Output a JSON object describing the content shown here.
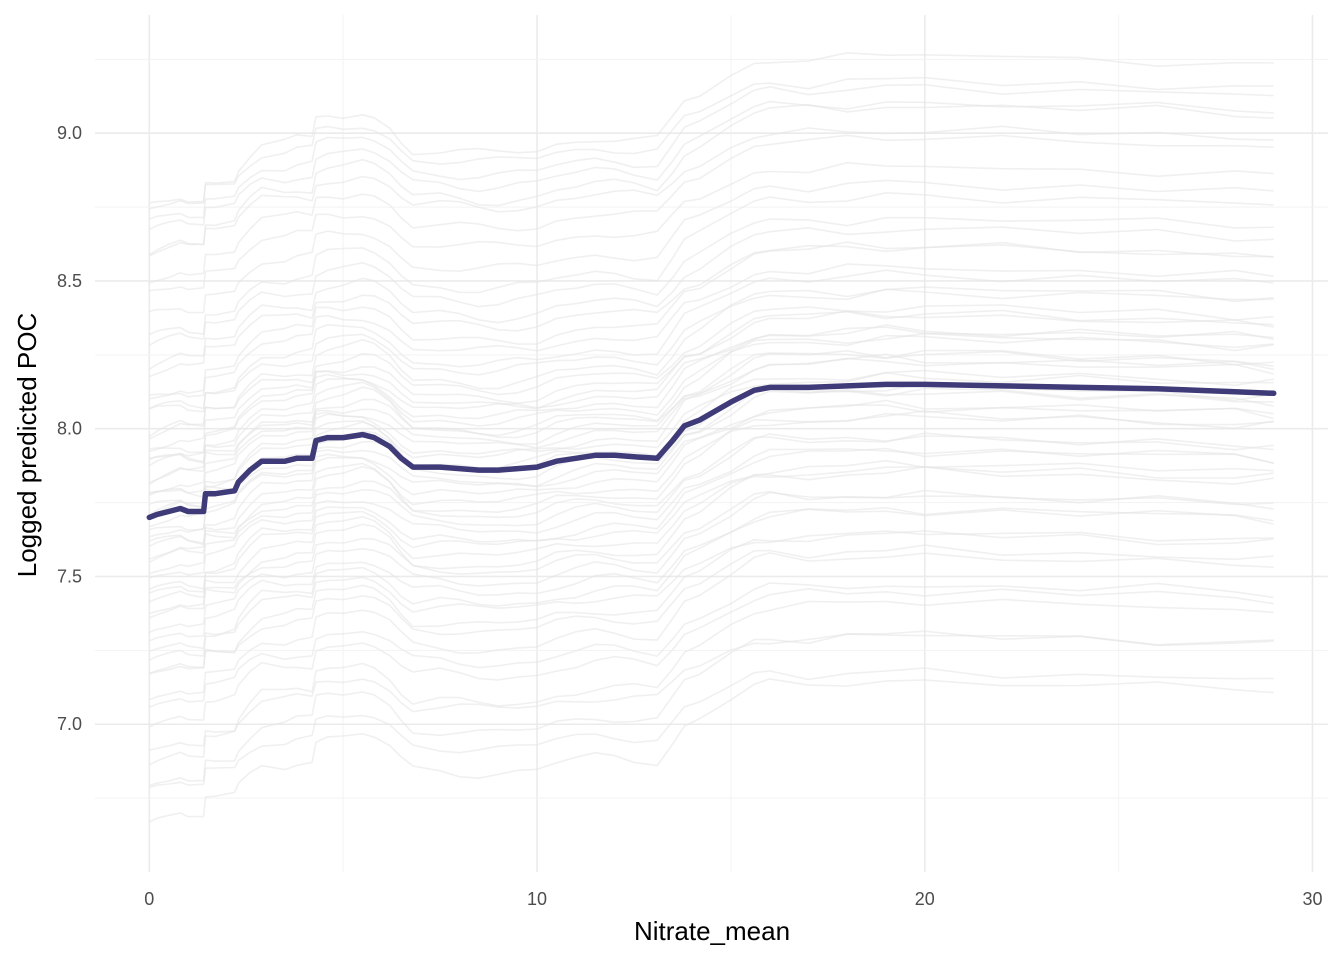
{
  "chart_data": {
    "type": "line",
    "chart_kind": "individual conditional expectation (ICE) with average curve",
    "xlabel": "Nitrate_mean",
    "ylabel": "Logged predicted POC",
    "xlim": [
      -1.4,
      30.4
    ],
    "ylim": [
      6.5,
      9.4
    ],
    "x_ticks": [
      0,
      10,
      20,
      30
    ],
    "y_ticks": [
      7.0,
      7.5,
      8.0,
      8.5,
      9.0
    ],
    "x_tick_labels": [
      "0",
      "10",
      "20",
      "30"
    ],
    "y_tick_labels": [
      "7.0",
      "7.5",
      "8.0",
      "8.5",
      "9.0"
    ],
    "grid": true,
    "legend": "none",
    "colors": {
      "average_line": "#3f3a78",
      "ice_lines": "#e3e3e3",
      "major_grid": "#ebebeb",
      "minor_grid": "#f3f3f3",
      "tick_text": "#4d4d4d"
    },
    "average_series": {
      "x": [
        0.0,
        0.2,
        0.5,
        0.8,
        1.0,
        1.4,
        1.45,
        1.7,
        2.2,
        2.3,
        2.6,
        2.9,
        3.5,
        3.8,
        4.2,
        4.3,
        4.6,
        5.0,
        5.5,
        5.8,
        6.2,
        6.5,
        6.8,
        7.5,
        8.0,
        8.5,
        9.0,
        9.5,
        10.0,
        10.5,
        11.0,
        11.5,
        12.0,
        12.5,
        13.1,
        13.5,
        13.8,
        14.2,
        15.0,
        15.6,
        16.0,
        17.0,
        18.0,
        19.0,
        20.0,
        22.0,
        24.0,
        26.0,
        28.0,
        29.0
      ],
      "y": [
        7.7,
        7.71,
        7.72,
        7.73,
        7.72,
        7.72,
        7.78,
        7.78,
        7.79,
        7.82,
        7.86,
        7.89,
        7.89,
        7.9,
        7.9,
        7.96,
        7.97,
        7.97,
        7.98,
        7.97,
        7.94,
        7.9,
        7.87,
        7.87,
        7.865,
        7.86,
        7.86,
        7.865,
        7.87,
        7.89,
        7.9,
        7.91,
        7.91,
        7.905,
        7.9,
        7.96,
        8.01,
        8.03,
        8.09,
        8.13,
        8.14,
        8.14,
        8.145,
        8.15,
        8.15,
        8.145,
        8.14,
        8.135,
        8.125,
        8.12
      ]
    },
    "ice_offsets": [
      -1.02,
      -0.95,
      -0.88,
      -0.82,
      -0.78,
      -0.7,
      -0.66,
      -0.6,
      -0.55,
      -0.52,
      -0.48,
      -0.45,
      -0.42,
      -0.38,
      -0.35,
      -0.32,
      -0.29,
      -0.26,
      -0.24,
      -0.21,
      -0.18,
      -0.16,
      -0.13,
      -0.11,
      -0.08,
      -0.06,
      -0.04,
      -0.02,
      0.0,
      0.02,
      0.04,
      0.06,
      0.08,
      0.1,
      0.12,
      0.14,
      0.16,
      0.18,
      0.2,
      0.22,
      0.24,
      0.27,
      0.3,
      0.33,
      0.36,
      0.4,
      0.44,
      0.48,
      0.52,
      0.57,
      0.62,
      0.68,
      0.75,
      0.82,
      0.88,
      0.92,
      0.96,
      1.0,
      1.04,
      1.08
    ],
    "ice_strengths": [
      1.08,
      0.9,
      1.15,
      0.85,
      1.2,
      1.0,
      0.92,
      1.1,
      0.95,
      1.05,
      0.88,
      1.12,
      0.97,
      1.03,
      0.9,
      1.1,
      1.0,
      0.94,
      1.07,
      0.96,
      1.02,
      0.9,
      1.1,
      0.98,
      1.04,
      0.93,
      1.08,
      1.0,
      0.95,
      1.06,
      0.91,
      1.12,
      0.99,
      1.03,
      0.94,
      1.09,
      0.97,
      1.01,
      0.92,
      1.07,
      1.0,
      0.95,
      1.1,
      0.9,
      1.05,
      0.98,
      1.13,
      0.93,
      1.02,
      0.96,
      1.08,
      1.0,
      0.94,
      1.06,
      0.9,
      1.1,
      0.97,
      1.03,
      0.95,
      1.15
    ]
  }
}
